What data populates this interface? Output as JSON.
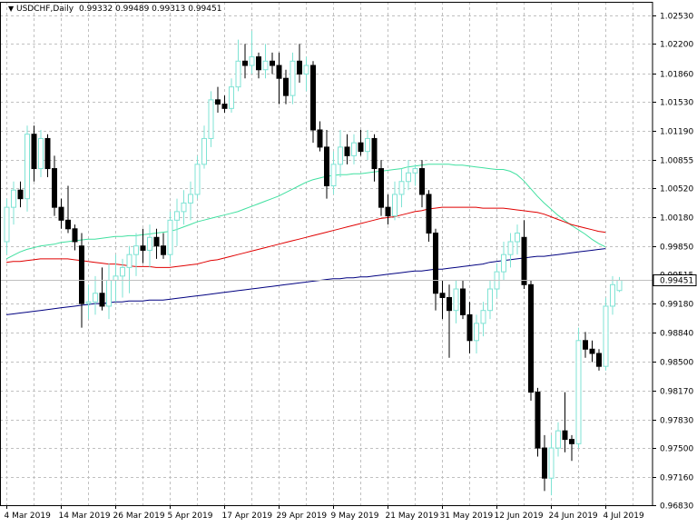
{
  "header": {
    "symbol": "USDCHF,Daily",
    "ohlc": "0.99332 0.99489 0.99313 0.99451"
  },
  "colors": {
    "background": "#ffffff",
    "grid": "#c0c0c0",
    "bull": "#7fe3d4",
    "bear": "#000000",
    "ma_fast": "#40e0a0",
    "ma_mid": "#e00000",
    "ma_slow": "#000080",
    "price_line": "#c0c0c0"
  },
  "chart_data": {
    "type": "candlestick",
    "symbol": "USDCHF",
    "timeframe": "Daily",
    "ylim": [
      0.96835,
      1.0269
    ],
    "y_ticks": [
      1.0253,
      1.022,
      1.0186,
      1.0153,
      1.0119,
      1.00855,
      1.0052,
      1.0018,
      0.9985,
      0.9918,
      0.9884,
      0.985,
      0.9817,
      0.9783,
      0.975,
      0.9716,
      0.9683
    ],
    "y_tick_labels": [
      "1.02530",
      "1.02200",
      "1.01860",
      "1.01530",
      "1.01190",
      "1.00855",
      "1.00520",
      "1.00180",
      "0.99850",
      "0.99180",
      "0.98840",
      "0.98500",
      "0.98170",
      "0.97830",
      "0.97500",
      "0.97160",
      "0.96830"
    ],
    "current_price": 0.99451,
    "current_price_label": "0.99451",
    "hidden_price_label": "0.99515",
    "x_ticks": [
      {
        "label": "4 Mar 2019",
        "index": 0
      },
      {
        "label": "14 Mar 2019",
        "index": 8
      },
      {
        "label": "26 Mar 2019",
        "index": 16
      },
      {
        "label": "5 Apr 2019",
        "index": 24
      },
      {
        "label": "17 Apr 2019",
        "index": 32
      },
      {
        "label": "29 Apr 2019",
        "index": 40
      },
      {
        "label": "9 May 2019",
        "index": 48
      },
      {
        "label": "21 May 2019",
        "index": 56
      },
      {
        "label": "31 May 2019",
        "index": 64
      },
      {
        "label": "12 Jun 2019",
        "index": 72
      },
      {
        "label": "24 Jun 2019",
        "index": 80
      },
      {
        "label": "4 Jul 2019",
        "index": 88
      }
    ],
    "candles": [
      {
        "o": 0.999,
        "h": 1.004,
        "l": 0.9975,
        "c": 1.003
      },
      {
        "o": 1.003,
        "h": 1.006,
        "l": 1.001,
        "c": 1.005
      },
      {
        "o": 1.005,
        "h": 1.006,
        "l": 1.003,
        "c": 1.004
      },
      {
        "o": 1.004,
        "h": 1.0125,
        "l": 1.0025,
        "c": 1.0115
      },
      {
        "o": 1.0115,
        "h": 1.0125,
        "l": 1.006,
        "c": 1.0075
      },
      {
        "o": 1.0075,
        "h": 1.012,
        "l": 1.0065,
        "c": 1.011
      },
      {
        "o": 1.011,
        "h": 1.0115,
        "l": 1.0065,
        "c": 1.0075
      },
      {
        "o": 1.0075,
        "h": 1.009,
        "l": 1.002,
        "c": 1.003
      },
      {
        "o": 1.003,
        "h": 1.004,
        "l": 1.0005,
        "c": 1.0015
      },
      {
        "o": 1.0015,
        "h": 1.0055,
        "l": 1.0,
        "c": 1.0005
      },
      {
        "o": 1.0005,
        "h": 1.001,
        "l": 0.998,
        "c": 0.999
      },
      {
        "o": 0.9985,
        "h": 1.0,
        "l": 0.989,
        "c": 0.9918
      },
      {
        "o": 0.9918,
        "h": 0.994,
        "l": 0.99,
        "c": 0.992
      },
      {
        "o": 0.992,
        "h": 0.995,
        "l": 0.9905,
        "c": 0.993
      },
      {
        "o": 0.993,
        "h": 0.996,
        "l": 0.991,
        "c": 0.9915
      },
      {
        "o": 0.9915,
        "h": 0.9965,
        "l": 0.99,
        "c": 0.9945
      },
      {
        "o": 0.9945,
        "h": 0.9975,
        "l": 0.992,
        "c": 0.995
      },
      {
        "o": 0.995,
        "h": 0.997,
        "l": 0.9925,
        "c": 0.996
      },
      {
        "o": 0.996,
        "h": 0.9985,
        "l": 0.993,
        "c": 0.9975
      },
      {
        "o": 0.9975,
        "h": 1.0,
        "l": 0.995,
        "c": 0.9985
      },
      {
        "o": 0.9985,
        "h": 1.0005,
        "l": 0.9965,
        "c": 0.998
      },
      {
        "o": 0.998,
        "h": 1.001,
        "l": 0.996,
        "c": 0.9995
      },
      {
        "o": 0.9995,
        "h": 1.0005,
        "l": 0.997,
        "c": 0.9985
      },
      {
        "o": 0.9985,
        "h": 1.0,
        "l": 0.997,
        "c": 0.9975
      },
      {
        "o": 0.9975,
        "h": 1.0025,
        "l": 0.9965,
        "c": 1.0015
      },
      {
        "o": 1.0015,
        "h": 1.004,
        "l": 0.9985,
        "c": 1.0025
      },
      {
        "o": 1.0025,
        "h": 1.005,
        "l": 1.001,
        "c": 1.0035
      },
      {
        "o": 1.0035,
        "h": 1.006,
        "l": 1.0015,
        "c": 1.0045
      },
      {
        "o": 1.0045,
        "h": 1.009,
        "l": 1.004,
        "c": 1.008
      },
      {
        "o": 1.008,
        "h": 1.0125,
        "l": 1.0075,
        "c": 1.011
      },
      {
        "o": 1.011,
        "h": 1.0165,
        "l": 1.01,
        "c": 1.0155
      },
      {
        "o": 1.0155,
        "h": 1.017,
        "l": 1.014,
        "c": 1.015
      },
      {
        "o": 1.015,
        "h": 1.016,
        "l": 1.014,
        "c": 1.0145
      },
      {
        "o": 1.0145,
        "h": 1.018,
        "l": 1.014,
        "c": 1.017
      },
      {
        "o": 1.017,
        "h": 1.0225,
        "l": 1.0165,
        "c": 1.02
      },
      {
        "o": 1.02,
        "h": 1.022,
        "l": 1.018,
        "c": 1.0195
      },
      {
        "o": 1.0195,
        "h": 1.0235,
        "l": 1.0185,
        "c": 1.0205
      },
      {
        "o": 1.0205,
        "h": 1.021,
        "l": 1.018,
        "c": 1.019
      },
      {
        "o": 1.019,
        "h": 1.022,
        "l": 1.018,
        "c": 1.02
      },
      {
        "o": 1.02,
        "h": 1.021,
        "l": 1.0185,
        "c": 1.0195
      },
      {
        "o": 1.0195,
        "h": 1.021,
        "l": 1.015,
        "c": 1.018
      },
      {
        "o": 1.018,
        "h": 1.019,
        "l": 1.015,
        "c": 1.016
      },
      {
        "o": 1.016,
        "h": 1.021,
        "l": 1.015,
        "c": 1.02
      },
      {
        "o": 1.02,
        "h": 1.022,
        "l": 1.0175,
        "c": 1.0185
      },
      {
        "o": 1.0185,
        "h": 1.0205,
        "l": 1.0165,
        "c": 1.0195
      },
      {
        "o": 1.0195,
        "h": 1.02,
        "l": 1.0105,
        "c": 1.012
      },
      {
        "o": 1.012,
        "h": 1.013,
        "l": 1.0095,
        "c": 1.01
      },
      {
        "o": 1.01,
        "h": 1.012,
        "l": 1.004,
        "c": 1.0055
      },
      {
        "o": 1.0055,
        "h": 1.0095,
        "l": 1.0045,
        "c": 1.008
      },
      {
        "o": 1.008,
        "h": 1.012,
        "l": 1.0065,
        "c": 1.01
      },
      {
        "o": 1.01,
        "h": 1.0115,
        "l": 1.008,
        "c": 1.009
      },
      {
        "o": 1.009,
        "h": 1.0115,
        "l": 1.008,
        "c": 1.0105
      },
      {
        "o": 1.0105,
        "h": 1.012,
        "l": 1.009,
        "c": 1.0095
      },
      {
        "o": 1.0095,
        "h": 1.012,
        "l": 1.0085,
        "c": 1.011
      },
      {
        "o": 1.011,
        "h": 1.0115,
        "l": 1.006,
        "c": 1.0075
      },
      {
        "o": 1.0075,
        "h": 1.0085,
        "l": 1.002,
        "c": 1.003
      },
      {
        "o": 1.003,
        "h": 1.0045,
        "l": 1.001,
        "c": 1.002
      },
      {
        "o": 1.002,
        "h": 1.006,
        "l": 1.0015,
        "c": 1.0045
      },
      {
        "o": 1.0045,
        "h": 1.0075,
        "l": 1.003,
        "c": 1.006
      },
      {
        "o": 1.006,
        "h": 1.0085,
        "l": 1.005,
        "c": 1.007
      },
      {
        "o": 1.007,
        "h": 1.008,
        "l": 1.0055,
        "c": 1.0075
      },
      {
        "o": 1.0075,
        "h": 1.0085,
        "l": 1.003,
        "c": 1.0045
      },
      {
        "o": 1.0045,
        "h": 1.005,
        "l": 0.999,
        "c": 1.0
      },
      {
        "o": 1.0,
        "h": 1.0005,
        "l": 0.991,
        "c": 0.993
      },
      {
        "o": 0.993,
        "h": 0.9945,
        "l": 0.99,
        "c": 0.9925
      },
      {
        "o": 0.9925,
        "h": 0.994,
        "l": 0.9855,
        "c": 0.991
      },
      {
        "o": 0.991,
        "h": 0.9945,
        "l": 0.9895,
        "c": 0.9935
      },
      {
        "o": 0.9935,
        "h": 0.9945,
        "l": 0.99,
        "c": 0.9905
      },
      {
        "o": 0.9905,
        "h": 0.992,
        "l": 0.986,
        "c": 0.9875
      },
      {
        "o": 0.9875,
        "h": 0.9905,
        "l": 0.986,
        "c": 0.9895
      },
      {
        "o": 0.9895,
        "h": 0.992,
        "l": 0.988,
        "c": 0.991
      },
      {
        "o": 0.991,
        "h": 0.9945,
        "l": 0.99,
        "c": 0.9935
      },
      {
        "o": 0.9935,
        "h": 0.9965,
        "l": 0.9925,
        "c": 0.9955
      },
      {
        "o": 0.9955,
        "h": 0.999,
        "l": 0.9945,
        "c": 0.9975
      },
      {
        "o": 0.9975,
        "h": 1.0,
        "l": 0.996,
        "c": 0.999
      },
      {
        "o": 0.999,
        "h": 1.001,
        "l": 0.9975,
        "c": 1.0
      },
      {
        "o": 0.9995,
        "h": 1.0015,
        "l": 0.9935,
        "c": 0.994
      },
      {
        "o": 0.994,
        "h": 0.9945,
        "l": 0.9805,
        "c": 0.9815
      },
      {
        "o": 0.9815,
        "h": 0.982,
        "l": 0.974,
        "c": 0.975
      },
      {
        "o": 0.975,
        "h": 0.9765,
        "l": 0.97,
        "c": 0.9715
      },
      {
        "o": 0.9715,
        "h": 0.9765,
        "l": 0.9695,
        "c": 0.975
      },
      {
        "o": 0.975,
        "h": 0.978,
        "l": 0.974,
        "c": 0.977
      },
      {
        "o": 0.977,
        "h": 0.9815,
        "l": 0.9745,
        "c": 0.976
      },
      {
        "o": 0.976,
        "h": 0.9765,
        "l": 0.9735,
        "c": 0.9755
      },
      {
        "o": 0.9755,
        "h": 0.989,
        "l": 0.975,
        "c": 0.9875
      },
      {
        "o": 0.9875,
        "h": 0.9885,
        "l": 0.9855,
        "c": 0.9865
      },
      {
        "o": 0.9865,
        "h": 0.9875,
        "l": 0.985,
        "c": 0.986
      },
      {
        "o": 0.986,
        "h": 0.9865,
        "l": 0.984,
        "c": 0.9845
      },
      {
        "o": 0.9845,
        "h": 0.9925,
        "l": 0.984,
        "c": 0.9915
      },
      {
        "o": 0.9915,
        "h": 0.995,
        "l": 0.9905,
        "c": 0.994
      },
      {
        "o": 0.99332,
        "h": 0.99489,
        "l": 0.99313,
        "c": 0.99451
      }
    ],
    "moving_averages": [
      {
        "color": "#40e0a0",
        "values": [
          0.997,
          0.9974,
          0.9978,
          0.9981,
          0.9983,
          0.9985,
          0.9986,
          0.9987,
          0.9989,
          0.999,
          0.9991,
          0.9992,
          0.9993,
          0.9993,
          0.9994,
          0.9995,
          0.9996,
          0.9996,
          0.9997,
          0.9997,
          0.9998,
          0.9999,
          1.0,
          1.0001,
          1.0002,
          1.0004,
          1.0007,
          1.001,
          1.0013,
          1.0015,
          1.0017,
          1.0019,
          1.0021,
          1.0023,
          1.0025,
          1.0028,
          1.0031,
          1.0034,
          1.0037,
          1.004,
          1.0043,
          1.0047,
          1.0051,
          1.0055,
          1.0059,
          1.0062,
          1.0064,
          1.0066,
          1.0067,
          1.0068,
          1.0068,
          1.0069,
          1.0069,
          1.007,
          1.0071,
          1.0072,
          1.0073,
          1.0074,
          1.0075,
          1.0077,
          1.0078,
          1.0079,
          1.008,
          1.008,
          1.008,
          1.008,
          1.0079,
          1.0079,
          1.0078,
          1.0077,
          1.0076,
          1.0075,
          1.0074,
          1.0074,
          1.0072,
          1.0068,
          1.0061,
          1.0052,
          1.0043,
          1.0035,
          1.0028,
          1.0021,
          1.0015,
          1.0009,
          1.0004,
          0.9999,
          0.9993,
          0.9988,
          0.9984
        ]
      },
      {
        "color": "#e00000",
        "values": [
          0.9966,
          0.9967,
          0.9967,
          0.9968,
          0.9969,
          0.997,
          0.997,
          0.997,
          0.997,
          0.997,
          0.9969,
          0.9968,
          0.9967,
          0.9966,
          0.9965,
          0.9964,
          0.9964,
          0.9963,
          0.9962,
          0.9961,
          0.9961,
          0.9961,
          0.996,
          0.996,
          0.996,
          0.9961,
          0.9962,
          0.9963,
          0.9964,
          0.9966,
          0.9968,
          0.9969,
          0.9971,
          0.9973,
          0.9975,
          0.9977,
          0.9979,
          0.9981,
          0.9983,
          0.9985,
          0.9987,
          0.9989,
          0.9991,
          0.9993,
          0.9995,
          0.9997,
          0.9999,
          1.0001,
          1.0003,
          1.0005,
          1.0007,
          1.0009,
          1.0011,
          1.0013,
          1.0015,
          1.0017,
          1.0018,
          1.0019,
          1.0021,
          1.0023,
          1.0025,
          1.0026,
          1.0028,
          1.0029,
          1.003,
          1.003,
          1.003,
          1.003,
          1.003,
          1.003,
          1.0029,
          1.0029,
          1.0029,
          1.0029,
          1.0028,
          1.0027,
          1.0026,
          1.0025,
          1.0024,
          1.0022,
          1.0019,
          1.0016,
          1.0013,
          1.001,
          1.0008,
          1.0006,
          1.0004,
          1.0002,
          1.0001
        ]
      },
      {
        "color": "#000080",
        "values": [
          0.9905,
          0.9906,
          0.9907,
          0.9908,
          0.9909,
          0.991,
          0.9911,
          0.9912,
          0.9913,
          0.9914,
          0.9915,
          0.9916,
          0.9917,
          0.9918,
          0.9918,
          0.9919,
          0.992,
          0.992,
          0.9921,
          0.9921,
          0.9921,
          0.9922,
          0.9922,
          0.9922,
          0.9923,
          0.9924,
          0.9925,
          0.9926,
          0.9927,
          0.9928,
          0.9929,
          0.993,
          0.9931,
          0.9932,
          0.9933,
          0.9934,
          0.9935,
          0.9936,
          0.9937,
          0.9938,
          0.9939,
          0.994,
          0.9941,
          0.9942,
          0.9943,
          0.9944,
          0.9945,
          0.9946,
          0.9947,
          0.9947,
          0.9948,
          0.9948,
          0.9949,
          0.9949,
          0.995,
          0.9951,
          0.9952,
          0.9953,
          0.9954,
          0.9955,
          0.9956,
          0.9956,
          0.9957,
          0.9958,
          0.9958,
          0.9959,
          0.996,
          0.9961,
          0.9962,
          0.9963,
          0.9964,
          0.9966,
          0.9967,
          0.9968,
          0.9969,
          0.997,
          0.9971,
          0.9972,
          0.9973,
          0.9973,
          0.9974,
          0.9975,
          0.9976,
          0.9977,
          0.9978,
          0.9979,
          0.998,
          0.9981,
          0.9982
        ]
      }
    ]
  }
}
